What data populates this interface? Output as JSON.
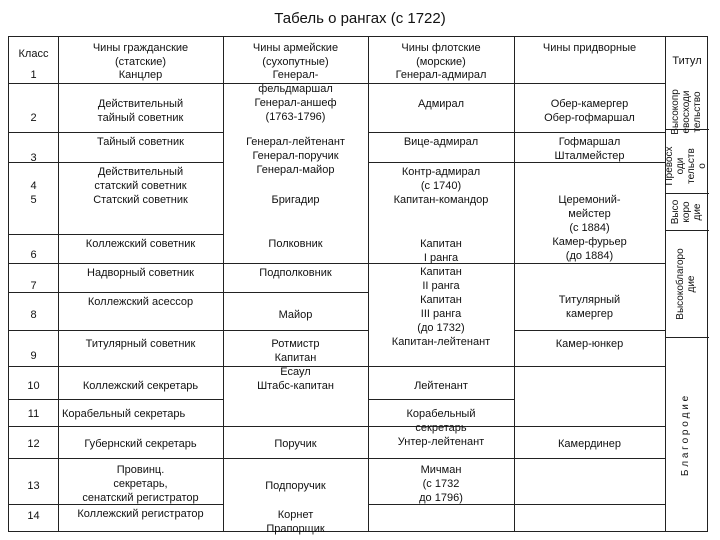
{
  "title": "Табель о рангах (с 1722)",
  "headers": {
    "klass": "Класс",
    "civil": "Чины гражданские\n(статские)",
    "army": "Чины армейские\n(сухопутные)",
    "navy": "Чины флотские\n(морские)",
    "court": "Чины придворные",
    "titul": "Титул"
  },
  "klass": [
    "1",
    "2",
    "3",
    "4\n5",
    "6",
    "7",
    "8",
    "9",
    "10",
    "11",
    "12",
    "13",
    "14"
  ],
  "civil": [
    "Канцлер",
    "Действительный\nтайный советник",
    "Тайный советник",
    "Действительный\nстатский советник\nСтатский советник",
    "Коллежский советник",
    "Надворный советник",
    "Коллежский асессор",
    "Титулярный советник",
    "Коллежский секретарь",
    "Корабельный секретарь",
    "Губернский секретарь",
    "Провинц.\nсекретарь,\nсенатский регистратор",
    "Коллежский регистратор"
  ],
  "army": [
    "Генерал-\nфельдмаршал\nГенерал-аншеф\n(1763-1796)",
    "Генерал-лейтенант\nГенерал-поручик\nГенерал-майор",
    "Бригадир",
    "Полковник",
    "Подполковник",
    "Майор",
    "Ротмистр\nКапитан\nЕсаул\nШтабс-капитан",
    "Поручик",
    "Подпоручик",
    "Корнет\nПрапорщик"
  ],
  "navy": [
    "Генерал-адмирал",
    "Адмирал",
    "Вице-адмирал",
    "Контр-адмирал\n(с 1740)\nКапитан-командор",
    "Капитан\nI ранга\nКапитан\nII ранга\nКапитан\nIII ранга\n(до 1732)\nКапитан-лейтенант",
    "Лейтенант",
    "Корабельный\nсекретарь\nУнтер-лейтенант",
    "Мичман\n(с 1732\nдо 1796)"
  ],
  "court": [
    "Обер-камергер\nОбер-гофмаршал",
    "Гофмаршал\nШталмейстер",
    "Церемоний-\nмейстер\n(с 1884)\nКамер-фурьер\n(до 1884)",
    "Титулярный\nкамергер",
    "Камер-юнкер",
    "Камердинер"
  ],
  "titul": [
    "Высокопр\nевосходи\nтельство",
    "Превосх\nоди\nтельств\nо",
    "Высо\nкоро\nдие",
    "Высокоблагоро\nдие",
    "Б л а г о р о д и е"
  ]
}
